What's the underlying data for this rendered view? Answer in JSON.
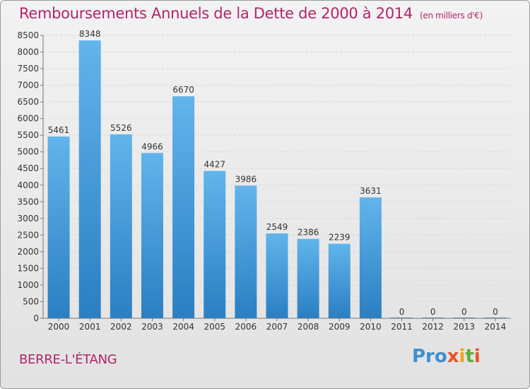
{
  "title": "Remboursements Annuels de la Dette de 2000 à 2014",
  "subtitle": "(en milliers d'€)",
  "town": "BERRE-L'ÉTANG",
  "logo": "Proxiti",
  "colors": {
    "title": "#b4246a",
    "bar_top": "#62b4ec",
    "bar_bottom": "#2a7fc2",
    "grid": "#d7d7d7"
  },
  "chart_data": {
    "type": "bar",
    "categories": [
      "2000",
      "2001",
      "2002",
      "2003",
      "2004",
      "2005",
      "2006",
      "2007",
      "2008",
      "2009",
      "2010",
      "2011",
      "2012",
      "2013",
      "2014"
    ],
    "values": [
      5461,
      8348,
      5526,
      4966,
      6670,
      4427,
      3986,
      2549,
      2386,
      2239,
      3631,
      0,
      0,
      0,
      0
    ],
    "data_labels": [
      "5461",
      "8348",
      "5526",
      "4966",
      "6670",
      "4427",
      "3986",
      "2549",
      "2386",
      "2239",
      "3631",
      "0",
      "0",
      "0",
      "0"
    ],
    "yticks": [
      "0",
      "500",
      "1000",
      "1500",
      "2000",
      "2500",
      "3000",
      "3500",
      "4000",
      "4500",
      "5000",
      "5500",
      "6000",
      "6500",
      "7000",
      "7500",
      "8000",
      "8500"
    ],
    "ylim": [
      0,
      8500
    ],
    "grid": true
  }
}
